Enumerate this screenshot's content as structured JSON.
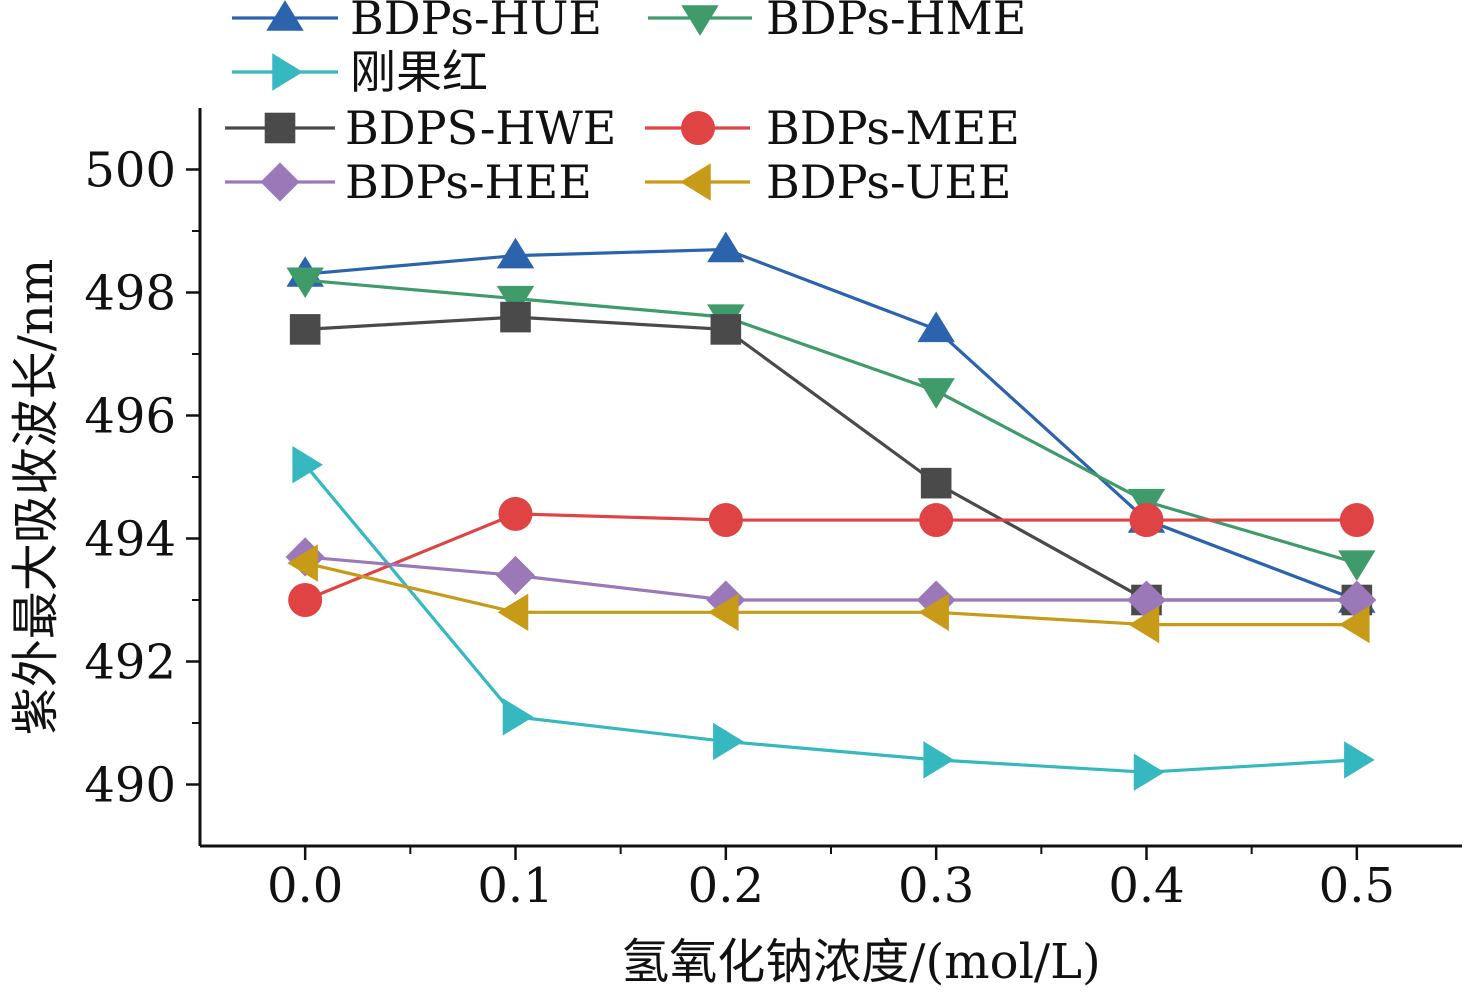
{
  "chart_data": {
    "type": "line",
    "title": "",
    "xlabel": "氢氧化钠浓度/(mol/L)",
    "ylabel": "紫外最大吸收波长/nm",
    "x": [
      0.0,
      0.1,
      0.2,
      0.3,
      0.4,
      0.5
    ],
    "xticks": [
      "0.0",
      "0.1",
      "0.2",
      "0.3",
      "0.4",
      "0.5"
    ],
    "yticks": [
      "490",
      "492",
      "494",
      "496",
      "498",
      "500"
    ],
    "xlim": [
      -0.05,
      0.55
    ],
    "ylim": [
      489,
      501
    ],
    "legend_position": "top",
    "series": [
      {
        "name": "BDPs-HUE",
        "color": "#2b63ad",
        "marker": "triangle-up",
        "values": [
          498.3,
          498.6,
          498.7,
          497.4,
          494.3,
          493.0
        ]
      },
      {
        "name": "BDPs-HME",
        "color": "#3f9b6a",
        "marker": "triangle-down",
        "values": [
          498.2,
          497.9,
          497.6,
          496.4,
          494.6,
          493.6
        ]
      },
      {
        "name": "刚果红",
        "color": "#35b8c0",
        "marker": "triangle-right",
        "values": [
          495.2,
          491.1,
          490.7,
          490.4,
          490.2,
          490.4
        ]
      },
      {
        "name": "BDPS-HWE",
        "color": "#4a4a4a",
        "marker": "square",
        "values": [
          497.4,
          497.6,
          497.4,
          494.9,
          493.0,
          493.0
        ]
      },
      {
        "name": "BDPs-MEE",
        "color": "#e04343",
        "marker": "circle",
        "values": [
          493.0,
          494.4,
          494.3,
          494.3,
          494.3,
          494.3
        ]
      },
      {
        "name": "BDPs-HEE",
        "color": "#9b79b8",
        "marker": "diamond",
        "values": [
          493.7,
          493.4,
          493.0,
          493.0,
          493.0,
          493.0
        ]
      },
      {
        "name": "BDPs-UEE",
        "color": "#c79a17",
        "marker": "triangle-left",
        "values": [
          493.6,
          492.8,
          492.8,
          492.8,
          492.6,
          492.6
        ]
      }
    ]
  }
}
